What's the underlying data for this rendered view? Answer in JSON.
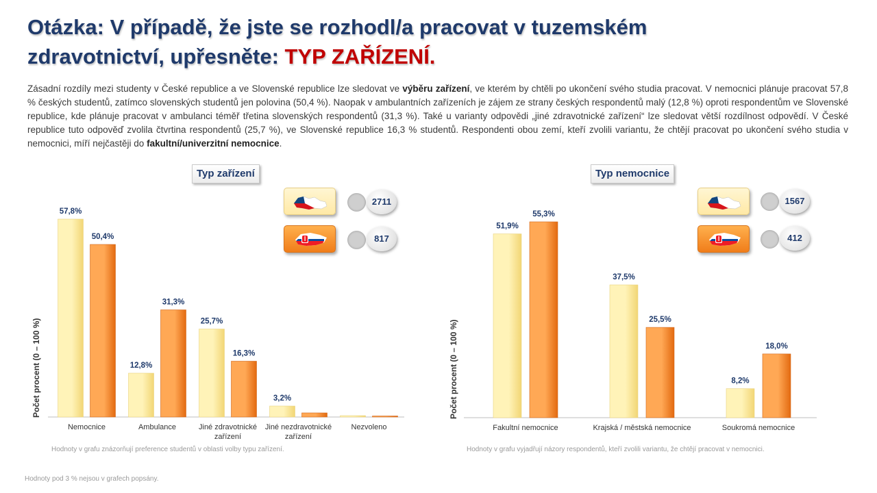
{
  "title": {
    "part1": "Otázka: V případě, že jste se rozhodl/a pracovat v tuzemském zdravotnictví, upřesněte: ",
    "accent": "TYP ZAŘÍZENÍ."
  },
  "intro": {
    "t1": "Zásadní rozdíly mezi studenty v České republice a ve Slovenské republice lze sledovat ve ",
    "b1": "výběru zařízení",
    "t2": ", ve kterém by chtěli po ukončení svého studia pracovat. V nemocnici plánuje pracovat 57,8 % českých studentů, zatímco slovenských studentů jen polovina (50,4 %). Naopak v ambulantních zařízeních je zájem ze strany českých respondentů malý (12,8 %) oproti respondentům ve Slovenské republice, kde plánuje pracovat v ambulanci téměř třetina slovenských respondentů (31,3 %). Také u varianty odpovědi „jiné zdravotnické zařízení“ lze sledovat větší rozdílnost odpovědí. V České republice tuto odpověď zvolila čtvrtina respondentů (25,7 %), ve Slovenské republice 16,3 % studentů. Respondenti obou zemí, kteří zvolili variantu, že chtějí pracovat po ukončení svého studia v nemocnici, míří nejčastěji do ",
    "b2": "fakultní/univerzitní nemocnice",
    "t3": "."
  },
  "colors": {
    "cz_light": "#fff3b8",
    "cz_dark": "#f2d675",
    "sk_light": "#ffa855",
    "sk_dark": "#e36a10",
    "label": "#1f3a6b"
  },
  "legend": {
    "left": {
      "cz_count": "2711",
      "sk_count": "817"
    },
    "right": {
      "cz_count": "1567",
      "sk_count": "412"
    }
  },
  "footnote": "Hodnoty pod 3 % nejsou v grafech popsány.",
  "chart_data": [
    {
      "type": "bar",
      "title": "Typ zařízení",
      "ylabel": "Počet procent  (0 – 100 %)",
      "categories": [
        "Nemocnice",
        "Ambulance",
        "Jiné zdravotnické zařízení",
        "Jiné nezdravotnické zařízení",
        "Nezvoleno"
      ],
      "series": [
        {
          "values": [
            57.8,
            12.8,
            25.7,
            3.2,
            0.4
          ],
          "labels": [
            "57,8%",
            "12,8%",
            "25,7%",
            "3,2%",
            ""
          ]
        },
        {
          "values": [
            50.4,
            31.3,
            16.3,
            1.2,
            0.3
          ],
          "labels": [
            "50,4%",
            "31,3%",
            "16,3%",
            "",
            ""
          ]
        }
      ],
      "ylim": [
        0,
        58
      ],
      "grid": false,
      "note": "Hodnoty v grafu znázorňují preference studentů v oblasti volby typu zařízení."
    },
    {
      "type": "bar",
      "title": "Typ nemocnice",
      "ylabel": "Počet procent  (0 – 100 %)",
      "categories": [
        "Fakultní nemocnice",
        "Krajská / městská nemocnice",
        "Soukromá nemocnice"
      ],
      "series": [
        {
          "values": [
            51.9,
            37.5,
            8.2
          ],
          "labels": [
            "51,9%",
            "37,5%",
            "8,2%"
          ]
        },
        {
          "values": [
            55.3,
            25.5,
            18.0
          ],
          "labels": [
            "55,3%",
            "25,5%",
            "18,0%"
          ]
        }
      ],
      "ylim": [
        0,
        58
      ],
      "grid": false,
      "note": "Hodnoty v grafu vyjadřují názory respondentů, kteří zvolili variantu, že chtějí pracovat v nemocnici."
    }
  ]
}
